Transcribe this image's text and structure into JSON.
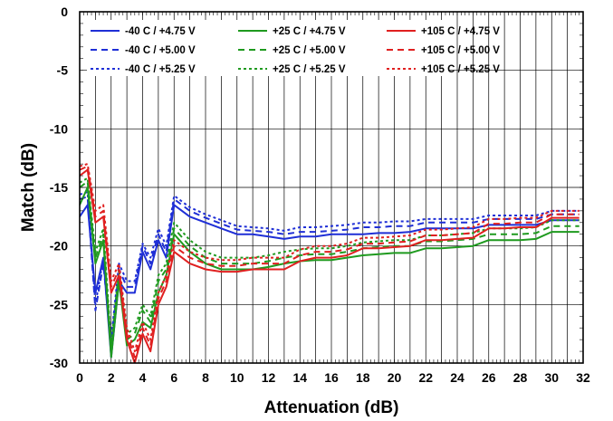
{
  "chart_data": {
    "type": "line",
    "title": "",
    "xlabel": "Attenuation (dB)",
    "ylabel": "Match (dB)",
    "xlim": [
      0,
      32
    ],
    "ylim": [
      -30,
      0
    ],
    "x_ticks": [
      "0",
      "2",
      "4",
      "6",
      "8",
      "10",
      "12",
      "14",
      "16",
      "18",
      "20",
      "22",
      "24",
      "26",
      "28",
      "30",
      "32"
    ],
    "y_ticks": [
      "0",
      "-5",
      "-10",
      "-15",
      "-20",
      "-25",
      "-30"
    ],
    "grid": true,
    "legend_position": "top-left",
    "series": [
      {
        "name": "-40 C / +4.75 V",
        "color": "#1f2fd6",
        "dash": "solid",
        "x": [
          0,
          0.5,
          1,
          1.5,
          2,
          2.5,
          3,
          3.5,
          4,
          4.5,
          5,
          5.5,
          6,
          7,
          8,
          9,
          10,
          11,
          12,
          13,
          14,
          15,
          16,
          17,
          18,
          19,
          20,
          21,
          22,
          23,
          24,
          25,
          26,
          27,
          28,
          29,
          30,
          31,
          31.75
        ],
        "y": [
          -17.5,
          -16.5,
          -24,
          -21,
          -29.5,
          -23,
          -24,
          -24,
          -20.5,
          -22,
          -19.5,
          -21,
          -16.5,
          -17.5,
          -18,
          -18.5,
          -19,
          -19,
          -19.2,
          -19.4,
          -19.2,
          -19.2,
          -19,
          -19,
          -19,
          -18.9,
          -18.9,
          -18.8,
          -18.5,
          -18.5,
          -18.5,
          -18.5,
          -18.2,
          -18.2,
          -18.2,
          -18.2,
          -17.8,
          -17.8,
          -17.8
        ]
      },
      {
        "name": "-40 C / +5.00 V",
        "color": "#1f2fd6",
        "dash": "dashed",
        "x": [
          0,
          0.5,
          1,
          1.5,
          2,
          2.5,
          3,
          3.5,
          4,
          4.5,
          5,
          5.5,
          6,
          7,
          8,
          9,
          10,
          11,
          12,
          13,
          14,
          15,
          16,
          17,
          18,
          19,
          20,
          21,
          22,
          23,
          24,
          25,
          26,
          27,
          28,
          29,
          30,
          31,
          31.75
        ],
        "y": [
          -16,
          -15.8,
          -25.5,
          -21.5,
          -28.5,
          -22,
          -23.5,
          -23.5,
          -20,
          -21.5,
          -19,
          -20.5,
          -16,
          -17,
          -17.6,
          -18.1,
          -18.6,
          -18.7,
          -18.8,
          -19,
          -18.8,
          -18.8,
          -18.7,
          -18.6,
          -18.4,
          -18.4,
          -18.3,
          -18.3,
          -18,
          -18,
          -18,
          -18,
          -17.7,
          -17.7,
          -17.7,
          -17.7,
          -17.3,
          -17.3,
          -17.3
        ]
      },
      {
        "name": "-40 C / +5.25 V",
        "color": "#1f2fd6",
        "dash": "dotted",
        "x": [
          0,
          0.5,
          1,
          1.5,
          2,
          2.5,
          3,
          3.5,
          4,
          4.5,
          5,
          5.5,
          6,
          7,
          8,
          9,
          10,
          11,
          12,
          13,
          14,
          15,
          16,
          17,
          18,
          19,
          20,
          21,
          22,
          23,
          24,
          25,
          26,
          27,
          28,
          29,
          30,
          31,
          31.75
        ],
        "y": [
          -15.6,
          -15.4,
          -25,
          -21,
          -28,
          -21.5,
          -23,
          -23,
          -19.8,
          -21,
          -18.5,
          -20,
          -15.7,
          -16.7,
          -17.3,
          -17.8,
          -18.3,
          -18.4,
          -18.5,
          -18.7,
          -18.4,
          -18.4,
          -18.3,
          -18.2,
          -18,
          -18,
          -17.9,
          -17.9,
          -17.7,
          -17.7,
          -17.7,
          -17.7,
          -17.4,
          -17.4,
          -17.4,
          -17.4,
          -17,
          -17,
          -17
        ]
      },
      {
        "name": "+25 C / +4.75 V",
        "color": "#1f9a1f",
        "dash": "solid",
        "x": [
          0,
          0.5,
          1,
          1.5,
          2,
          2.5,
          3,
          3.5,
          4,
          4.5,
          5,
          5.5,
          6,
          7,
          8,
          9,
          10,
          11,
          12,
          13,
          14,
          15,
          16,
          17,
          18,
          19,
          20,
          21,
          22,
          23,
          24,
          25,
          26,
          27,
          28,
          29,
          30,
          31,
          31.75
        ],
        "y": [
          -16.5,
          -15,
          -21.5,
          -19.5,
          -29.5,
          -23,
          -28.5,
          -28,
          -26.5,
          -27,
          -24,
          -22.5,
          -19,
          -20.5,
          -21.5,
          -22,
          -22,
          -22,
          -21.8,
          -21.5,
          -21.3,
          -21.2,
          -21.2,
          -21,
          -20.8,
          -20.7,
          -20.6,
          -20.6,
          -20.2,
          -20.2,
          -20.1,
          -20,
          -19.5,
          -19.5,
          -19.5,
          -19.4,
          -18.8,
          -18.8,
          -18.8
        ]
      },
      {
        "name": "+25 C / +5.00 V",
        "color": "#1f9a1f",
        "dash": "dashed",
        "x": [
          0,
          0.5,
          1,
          1.5,
          2,
          2.5,
          3,
          3.5,
          4,
          4.5,
          5,
          5.5,
          6,
          7,
          8,
          9,
          10,
          11,
          12,
          13,
          14,
          15,
          16,
          17,
          18,
          19,
          20,
          21,
          22,
          23,
          24,
          25,
          26,
          27,
          28,
          29,
          30,
          31,
          31.75
        ],
        "y": [
          -15,
          -14.5,
          -21,
          -19,
          -29,
          -22.5,
          -28,
          -27.5,
          -25.5,
          -26.5,
          -23,
          -22,
          -18.5,
          -20,
          -21,
          -21.5,
          -21.5,
          -21.5,
          -21.3,
          -21,
          -20.8,
          -20.7,
          -20.7,
          -20.5,
          -20.2,
          -20.1,
          -20,
          -20,
          -19.6,
          -19.6,
          -19.5,
          -19.4,
          -19,
          -19,
          -19,
          -18.9,
          -18.3,
          -18.3,
          -18.3
        ]
      },
      {
        "name": "+25 C / +5.25 V",
        "color": "#1f9a1f",
        "dash": "dotted",
        "x": [
          0,
          0.5,
          1,
          1.5,
          2,
          2.5,
          3,
          3.5,
          4,
          4.5,
          5,
          5.5,
          6,
          7,
          8,
          9,
          10,
          11,
          12,
          13,
          14,
          15,
          16,
          17,
          18,
          19,
          20,
          21,
          22,
          23,
          24,
          25,
          26,
          27,
          28,
          29,
          30,
          31,
          31.75
        ],
        "y": [
          -14.6,
          -14.2,
          -20.5,
          -18.5,
          -28.5,
          -22,
          -27.5,
          -27,
          -25,
          -26,
          -22.5,
          -21.5,
          -18,
          -19.5,
          -20.5,
          -21,
          -21,
          -21,
          -20.8,
          -20.5,
          -20.3,
          -20.2,
          -20.2,
          -20,
          -19.7,
          -19.6,
          -19.5,
          -19.5,
          -19.1,
          -19.1,
          -19,
          -18.9,
          -18.5,
          -18.5,
          -18.5,
          -18.4,
          -17.8,
          -17.8,
          -17.8
        ]
      },
      {
        "name": "+105 C / +4.75 V",
        "color": "#e02020",
        "dash": "solid",
        "x": [
          0,
          0.5,
          1,
          1.5,
          2,
          2.5,
          3,
          3.5,
          4,
          4.5,
          5,
          5.5,
          6,
          7,
          8,
          9,
          10,
          11,
          12,
          13,
          14,
          15,
          16,
          17,
          18,
          19,
          20,
          21,
          22,
          23,
          24,
          25,
          26,
          27,
          28,
          29,
          30,
          31,
          31.75
        ],
        "y": [
          -14,
          -13.5,
          -18,
          -17.5,
          -24,
          -22.5,
          -28,
          -30,
          -27.5,
          -29,
          -25,
          -23.5,
          -20.5,
          -21.5,
          -22,
          -22.2,
          -22.2,
          -22,
          -22,
          -22,
          -21.3,
          -21,
          -21,
          -20.8,
          -20.2,
          -20.2,
          -20.1,
          -20,
          -19.5,
          -19.5,
          -19.4,
          -19.3,
          -18.5,
          -18.5,
          -18.4,
          -18.4,
          -17.6,
          -17.6,
          -17.6
        ]
      },
      {
        "name": "+105 C / +5.00 V",
        "color": "#e02020",
        "dash": "dashed",
        "x": [
          0,
          0.5,
          1,
          1.5,
          2,
          2.5,
          3,
          3.5,
          4,
          4.5,
          5,
          5.5,
          6,
          7,
          8,
          9,
          10,
          11,
          12,
          13,
          14,
          15,
          16,
          17,
          18,
          19,
          20,
          21,
          22,
          23,
          24,
          25,
          26,
          27,
          28,
          29,
          30,
          31,
          31.75
        ],
        "y": [
          -13.5,
          -13.2,
          -17.5,
          -17,
          -23.5,
          -22,
          -27.5,
          -29.5,
          -27,
          -28.5,
          -24.5,
          -23,
          -20,
          -21,
          -21.5,
          -21.7,
          -21.7,
          -21.5,
          -21.5,
          -21.5,
          -20.8,
          -20.5,
          -20.5,
          -20.3,
          -19.8,
          -19.8,
          -19.7,
          -19.6,
          -19.1,
          -19.1,
          -19,
          -18.9,
          -18.1,
          -18.1,
          -18,
          -18,
          -17.3,
          -17.3,
          -17.3
        ]
      },
      {
        "name": "+105 C / +5.25 V",
        "color": "#e02020",
        "dash": "dotted",
        "x": [
          0,
          0.5,
          1,
          1.5,
          2,
          2.5,
          3,
          3.5,
          4,
          4.5,
          5,
          5.5,
          6,
          7,
          8,
          9,
          10,
          11,
          12,
          13,
          14,
          15,
          16,
          17,
          18,
          19,
          20,
          21,
          22,
          23,
          24,
          25,
          26,
          27,
          28,
          29,
          30,
          31,
          31.75
        ],
        "y": [
          -13.2,
          -13,
          -17,
          -16.5,
          -23,
          -21.5,
          -27,
          -29,
          -26.5,
          -28,
          -24,
          -22.5,
          -19.5,
          -20.5,
          -21,
          -21.2,
          -21.2,
          -21,
          -21,
          -21,
          -20.3,
          -20,
          -20,
          -19.8,
          -19.3,
          -19.3,
          -19.2,
          -19.1,
          -18.6,
          -18.6,
          -18.5,
          -18.4,
          -17.7,
          -17.7,
          -17.6,
          -17.6,
          -17,
          -17,
          -17
        ]
      }
    ]
  }
}
